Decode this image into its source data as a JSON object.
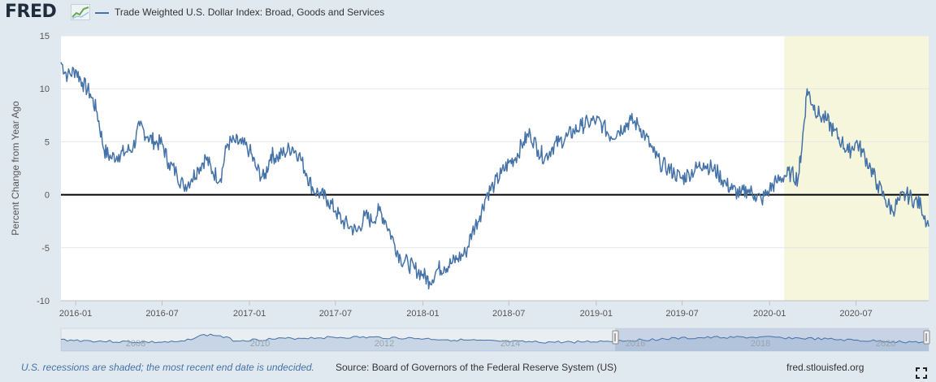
{
  "header": {
    "logo_text": "FRED",
    "logo_icon": "chart-line-icon",
    "legend_label": "Trade Weighted U.S. Dollar Index: Broad, Goods and Services"
  },
  "colors": {
    "series": "#4572a7",
    "recession": "#f5f6dc",
    "background": "#e1e9f0",
    "plot": "#ffffff",
    "note": "#4572a7"
  },
  "chart_data": {
    "type": "line",
    "title": "",
    "xlabel": "",
    "ylabel": "Percent Change from Year Ago",
    "ylim": [
      -10,
      15
    ],
    "yticks": [
      15,
      10,
      5,
      0,
      -5,
      -10
    ],
    "xlim": [
      "2015-12-01",
      "2020-12-01"
    ],
    "xticks": [
      "2016-01",
      "2016-07",
      "2017-01",
      "2017-07",
      "2018-01",
      "2018-07",
      "2019-01",
      "2019-07",
      "2020-01",
      "2020-07"
    ],
    "grid": true,
    "zero_line": true,
    "recession": {
      "start": "2020-02-01",
      "end": "2020-12-01"
    },
    "series": [
      {
        "name": "Trade Weighted U.S. Dollar Index: Broad, Goods and Services",
        "x": [
          "2015-12-01",
          "2015-12-15",
          "2016-01-01",
          "2016-01-15",
          "2016-02-01",
          "2016-02-15",
          "2016-03-01",
          "2016-03-15",
          "2016-04-01",
          "2016-04-15",
          "2016-05-01",
          "2016-05-15",
          "2016-06-01",
          "2016-06-15",
          "2016-07-01",
          "2016-07-15",
          "2016-08-01",
          "2016-08-15",
          "2016-09-01",
          "2016-09-15",
          "2016-10-01",
          "2016-10-15",
          "2016-11-01",
          "2016-11-15",
          "2016-12-01",
          "2016-12-15",
          "2017-01-01",
          "2017-01-15",
          "2017-02-01",
          "2017-02-15",
          "2017-03-01",
          "2017-03-15",
          "2017-04-01",
          "2017-04-15",
          "2017-05-01",
          "2017-05-15",
          "2017-06-01",
          "2017-06-15",
          "2017-07-01",
          "2017-07-15",
          "2017-08-01",
          "2017-08-15",
          "2017-09-01",
          "2017-09-15",
          "2017-10-01",
          "2017-10-15",
          "2017-11-01",
          "2017-11-15",
          "2017-12-01",
          "2017-12-15",
          "2018-01-01",
          "2018-01-15",
          "2018-02-01",
          "2018-02-15",
          "2018-03-01",
          "2018-03-15",
          "2018-04-01",
          "2018-04-15",
          "2018-05-01",
          "2018-05-15",
          "2018-06-01",
          "2018-06-15",
          "2018-07-01",
          "2018-07-15",
          "2018-08-01",
          "2018-08-15",
          "2018-09-01",
          "2018-09-15",
          "2018-10-01",
          "2018-10-15",
          "2018-11-01",
          "2018-11-15",
          "2018-12-01",
          "2018-12-15",
          "2019-01-01",
          "2019-01-15",
          "2019-02-01",
          "2019-02-15",
          "2019-03-01",
          "2019-03-15",
          "2019-04-01",
          "2019-04-15",
          "2019-05-01",
          "2019-05-15",
          "2019-06-01",
          "2019-06-15",
          "2019-07-01",
          "2019-07-15",
          "2019-08-01",
          "2019-08-15",
          "2019-09-01",
          "2019-09-15",
          "2019-10-01",
          "2019-10-15",
          "2019-11-01",
          "2019-11-15",
          "2019-12-01",
          "2019-12-15",
          "2020-01-01",
          "2020-01-15",
          "2020-02-01",
          "2020-02-15",
          "2020-03-01",
          "2020-03-10",
          "2020-03-20",
          "2020-04-01",
          "2020-04-15",
          "2020-05-01",
          "2020-05-15",
          "2020-06-01",
          "2020-06-15",
          "2020-07-01",
          "2020-07-15",
          "2020-08-01",
          "2020-08-15",
          "2020-09-01",
          "2020-09-15",
          "2020-10-01",
          "2020-10-15",
          "2020-11-01",
          "2020-11-15",
          "2020-12-01"
        ],
        "values": [
          12.5,
          11.2,
          11.8,
          10.6,
          9.5,
          7.8,
          4.2,
          3.5,
          3.8,
          4.0,
          4.5,
          6.5,
          5.5,
          5.0,
          4.8,
          3.0,
          2.0,
          0.8,
          1.5,
          2.5,
          3.5,
          2.2,
          1.5,
          4.8,
          5.0,
          4.8,
          4.2,
          2.5,
          1.5,
          3.8,
          3.5,
          4.0,
          4.5,
          3.8,
          2.0,
          0.5,
          0.0,
          -0.5,
          -1.5,
          -2.5,
          -3.0,
          -3.5,
          -2.0,
          -2.5,
          -1.5,
          -2.5,
          -4.5,
          -6.0,
          -6.5,
          -7.0,
          -7.5,
          -8.2,
          -7.0,
          -6.8,
          -6.5,
          -6.0,
          -5.5,
          -3.5,
          -2.0,
          0.0,
          1.0,
          2.0,
          3.0,
          3.5,
          5.0,
          5.8,
          4.2,
          3.5,
          4.5,
          5.0,
          5.5,
          6.0,
          6.5,
          6.8,
          7.0,
          6.5,
          5.5,
          6.0,
          6.5,
          7.0,
          6.5,
          5.5,
          4.0,
          3.0,
          2.5,
          2.0,
          1.5,
          2.0,
          2.5,
          3.0,
          2.5,
          2.0,
          1.0,
          0.5,
          0.0,
          0.5,
          0.0,
          -0.5,
          0.5,
          1.2,
          1.8,
          2.0,
          1.5,
          5.0,
          10.0,
          8.5,
          7.5,
          7.0,
          6.0,
          5.0,
          4.0,
          5.0,
          4.0,
          2.5,
          1.0,
          -0.5,
          -1.5,
          -0.5,
          0.0,
          -0.5,
          -1.0,
          -3.0
        ]
      }
    ]
  },
  "navigator": {
    "labels": [
      "2008",
      "2010",
      "2012",
      "2014",
      "2016",
      "2018",
      "2020"
    ]
  },
  "footer": {
    "note": "U.S. recessions are shaded; the most recent end date is undecided.",
    "source": "Source: Board of Governors of the Federal Reserve System (US)",
    "site": "fred.stlouisfed.org"
  }
}
